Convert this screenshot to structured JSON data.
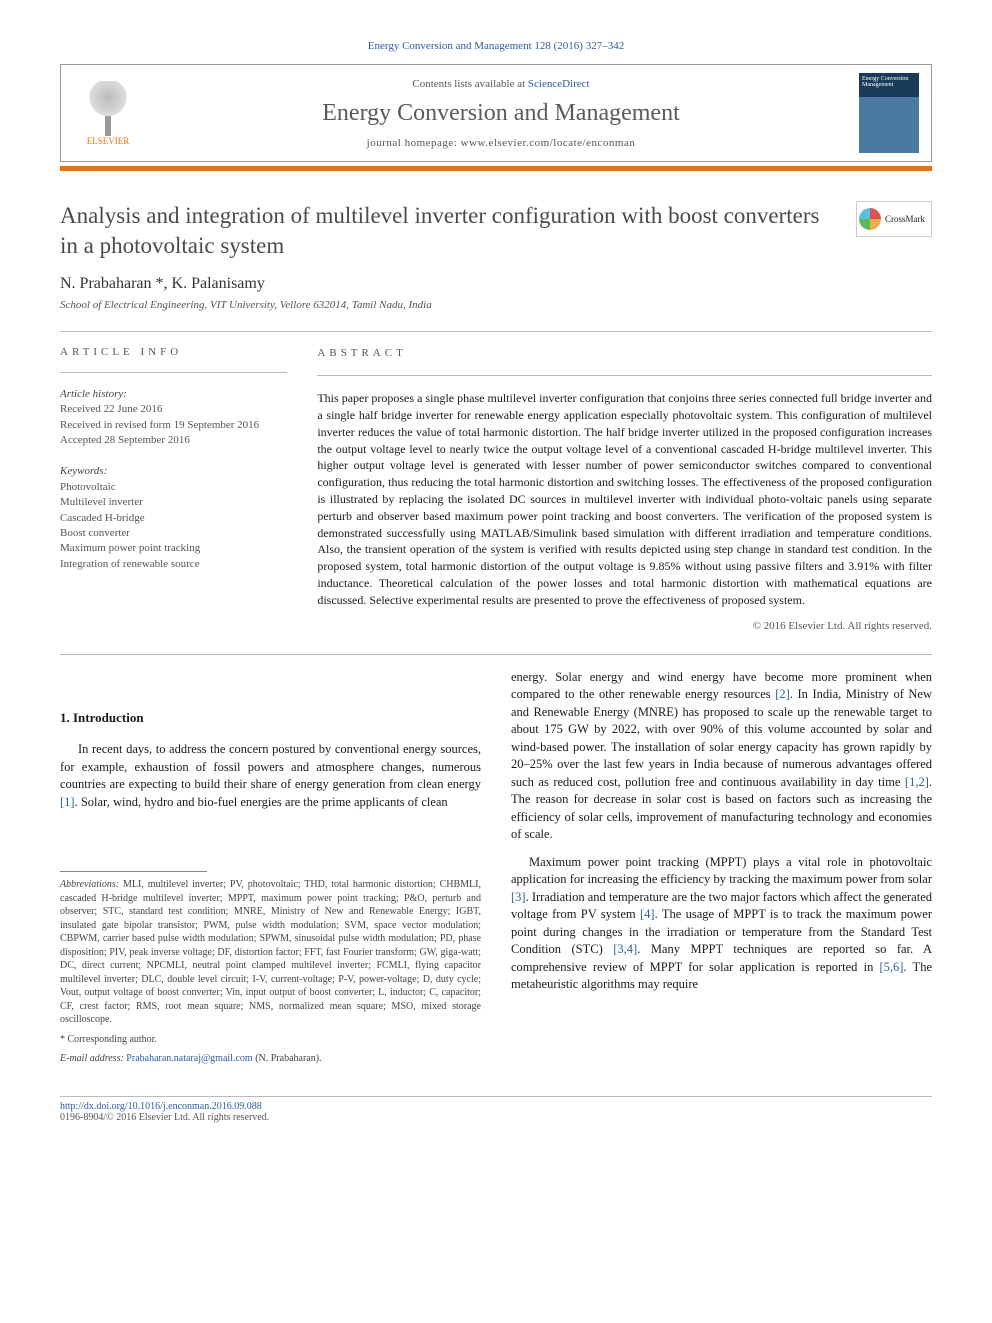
{
  "journalRef": "Energy Conversion and Management 128 (2016) 327–342",
  "header": {
    "contentsPrefix": "Contents lists available at ",
    "contentsLink": "ScienceDirect",
    "journalTitle": "Energy Conversion and Management",
    "homepage": "journal homepage: www.elsevier.com/locate/enconman",
    "publisher": "ELSEVIER",
    "coverLabel": "Energy Conversion Management"
  },
  "crossmark": "CrossMark",
  "title": "Analysis and integration of multilevel inverter configuration with boost converters in a photovoltaic system",
  "authors": "N. Prabaharan *, K. Palanisamy",
  "affiliation": "School of Electrical Engineering, VIT University, Vellore 632014, Tamil Nadu, India",
  "info": {
    "labelInfo": "ARTICLE INFO",
    "historyHeading": "Article history:",
    "history": [
      "Received 22 June 2016",
      "Received in revised form 19 September 2016",
      "Accepted 28 September 2016"
    ],
    "keywordsHeading": "Keywords:",
    "keywords": [
      "Photovoltaic",
      "Multilevel inverter",
      "Cascaded H-bridge",
      "Boost converter",
      "Maximum power point tracking",
      "Integration of renewable source"
    ]
  },
  "abstract": {
    "label": "ABSTRACT",
    "text": "This paper proposes a single phase multilevel inverter configuration that conjoins three series connected full bridge inverter and a single half bridge inverter for renewable energy application especially photovoltaic system. This configuration of multilevel inverter reduces the value of total harmonic distortion. The half bridge inverter utilized in the proposed configuration increases the output voltage level to nearly twice the output voltage level of a conventional cascaded H-bridge multilevel inverter. This higher output voltage level is generated with lesser number of power semiconductor switches compared to conventional configuration, thus reducing the total harmonic distortion and switching losses. The effectiveness of the proposed configuration is illustrated by replacing the isolated DC sources in multilevel inverter with individual photo-voltaic panels using separate perturb and observer based maximum power point tracking and boost converters. The verification of the proposed system is demonstrated successfully using MATLAB/Simulink based simulation with different irradiation and temperature conditions. Also, the transient operation of the system is verified with results depicted using step change in standard test condition. In the proposed system, total harmonic distortion of the output voltage is 9.85% without using passive filters and 3.91% with filter inductance. Theoretical calculation of the power losses and total harmonic distortion with mathematical equations are discussed. Selective experimental results are presented to prove the effectiveness of proposed system.",
    "copyright": "© 2016 Elsevier Ltd. All rights reserved."
  },
  "intro": {
    "heading": "1. Introduction",
    "p1a": "In recent days, to address the concern postured by conventional energy sources, for example, exhaustion of fossil powers and atmosphere changes, numerous countries are expecting to build their share of energy generation from clean energy ",
    "p1ref1": "[1]",
    "p1b": ". Solar, wind, hydro and bio-fuel energies are the prime applicants of clean ",
    "p2a": "energy. Solar energy and wind energy have become more prominent when compared to the other renewable energy resources ",
    "p2ref1": "[2]",
    "p2b": ". In India, Ministry of New and Renewable Energy (MNRE) has proposed to scale up the renewable target to about 175 GW by 2022, with over 90% of this volume accounted by solar and wind-based power. The installation of solar energy capacity has grown rapidly by 20–25% over the last few years in India because of numerous advantages offered such as reduced cost, pollution free and continuous availability in day time ",
    "p2ref2": "[1,2]",
    "p2c": ". The reason for decrease in solar cost is based on factors such as increasing the efficiency of solar cells, improvement of manufacturing technology and economies of scale.",
    "p3a": "Maximum power point tracking (MPPT) plays a vital role in photovoltaic application for increasing the efficiency by tracking the maximum power from solar ",
    "p3ref1": "[3]",
    "p3b": ". Irradiation and temperature are the two major factors which affect the generated voltage from PV system ",
    "p3ref2": "[4]",
    "p3c": ". The usage of MPPT is to track the maximum power point during changes in the irradiation or temperature from the Standard Test Condition (STC) ",
    "p3ref3": "[3,4]",
    "p3d": ". Many MPPT techniques are reported so far. A comprehensive review of MPPT for solar application is reported in ",
    "p3ref4": "[5,6]",
    "p3e": ". The metaheuristic algorithms may require"
  },
  "footnotes": {
    "abbrevLabel": "Abbreviations:",
    "abbrevText": " MLI, multilevel inverter; PV, photovoltaic; THD, total harmonic distortion; CHBMLI, cascaded H-bridge multilevel inverter; MPPT, maximum power point tracking; P&O, perturb and observer; STC, standard test condition; MNRE, Ministry of New and Renewable Energy; IGBT, insulated gate bipolar transistor; PWM, pulse width modulation; SVM, space vector modulation; CBPWM, carrier based pulse width modulation; SPWM, sinusoidal pulse width modulation; PD, phase disposition; PIV, peak inverse voltage; DF, distortion factor; FFT, fast Fourier transform; GW, giga-watt; DC, direct current; NPCMLI, neutral point clamped multilevel inverter; FCMLI, flying capacitor multilevel inverter; DLC, double level circuit; I-V, current-voltage; P-V, power-voltage; D, duty cycle; Vout, output voltage of boost converter; Vin, input output of boost converter; L, inductor; C, capacitor; CF, crest factor; RMS, root mean square; NMS, normalized mean square; MSO, mixed storage oscilloscope.",
    "corrLabel": "* Corresponding author.",
    "emailLabel": "E-mail address: ",
    "email": "Prabaharan.nataraj@gmail.com",
    "emailSuffix": " (N. Prabaharan)."
  },
  "doi": {
    "link": "http://dx.doi.org/10.1016/j.enconman.2016.09.088",
    "issn": "0196-8904/© 2016 Elsevier Ltd. All rights reserved."
  }
}
